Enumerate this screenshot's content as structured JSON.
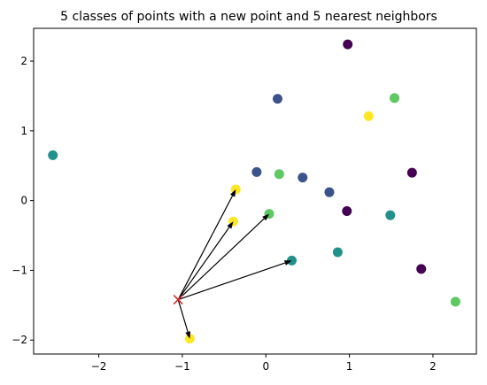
{
  "chart_data": {
    "type": "scatter",
    "title": "5 classes of points with a new point and 5 nearest neighbors",
    "xlabel": "",
    "ylabel": "",
    "xlim": [
      -2.78,
      2.52
    ],
    "ylim": [
      -2.2,
      2.47
    ],
    "grid": false,
    "x_ticks": [
      -2,
      -1,
      0,
      1,
      2
    ],
    "y_ticks": [
      -2,
      -1,
      0,
      1,
      2
    ],
    "x_tick_labels": [
      "−2",
      "−1",
      "0",
      "1",
      "2"
    ],
    "y_tick_labels": [
      "−2",
      "−1",
      "0",
      "1",
      "2"
    ],
    "class_colors": [
      "#440154",
      "#3b528b",
      "#21918c",
      "#5ec962",
      "#fde725"
    ],
    "points": [
      {
        "x": 0.98,
        "y": 2.24,
        "cls": 0
      },
      {
        "x": 1.75,
        "y": 0.4,
        "cls": 0
      },
      {
        "x": 0.97,
        "y": -0.15,
        "cls": 0
      },
      {
        "x": 1.86,
        "y": -0.98,
        "cls": 0
      },
      {
        "x": 0.14,
        "y": 1.46,
        "cls": 1
      },
      {
        "x": -0.11,
        "y": 0.41,
        "cls": 1
      },
      {
        "x": 0.44,
        "y": 0.33,
        "cls": 1
      },
      {
        "x": 0.76,
        "y": 0.12,
        "cls": 1
      },
      {
        "x": -2.55,
        "y": 0.65,
        "cls": 2
      },
      {
        "x": 1.49,
        "y": -0.21,
        "cls": 2
      },
      {
        "x": 0.86,
        "y": -0.74,
        "cls": 2
      },
      {
        "x": 0.31,
        "y": -0.86,
        "cls": 2
      },
      {
        "x": 1.54,
        "y": 1.47,
        "cls": 3
      },
      {
        "x": 0.16,
        "y": 0.38,
        "cls": 3
      },
      {
        "x": 0.04,
        "y": -0.19,
        "cls": 3
      },
      {
        "x": 2.27,
        "y": -1.45,
        "cls": 3
      },
      {
        "x": 1.23,
        "y": 1.21,
        "cls": 4
      },
      {
        "x": -0.36,
        "y": 0.16,
        "cls": 4
      },
      {
        "x": -0.39,
        "y": -0.3,
        "cls": 4
      },
      {
        "x": -0.91,
        "y": -1.98,
        "cls": 4
      }
    ],
    "new_point": {
      "x": -1.05,
      "y": -1.42,
      "color": "#d62728",
      "marker": "x"
    },
    "neighbors": [
      {
        "x": -0.36,
        "y": 0.16
      },
      {
        "x": -0.39,
        "y": -0.3
      },
      {
        "x": 0.04,
        "y": -0.19
      },
      {
        "x": 0.31,
        "y": -0.86
      },
      {
        "x": -0.91,
        "y": -1.98
      }
    ]
  }
}
